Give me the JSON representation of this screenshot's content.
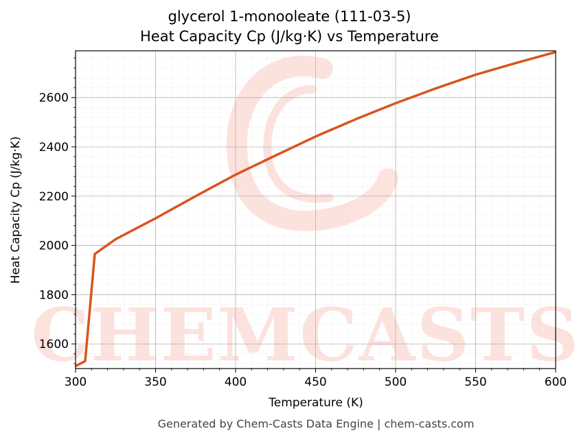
{
  "title_line1": "glycerol 1-monooleate (111-03-5)",
  "title_line2": "Heat Capacity Cp (J/kg·K) vs Temperature",
  "watermark": "CHEMCASTS",
  "footer": "Generated by Chem-Casts Data Engine | chem-casts.com",
  "chart_data": {
    "type": "line",
    "xlabel": "Temperature (K)",
    "ylabel": "Heat Capacity Cp (J/kg·K)",
    "xlim": [
      300,
      600
    ],
    "ylim": [
      1500,
      2790
    ],
    "x_ticks": [
      300,
      350,
      400,
      450,
      500,
      550,
      600
    ],
    "y_ticks": [
      1600,
      1800,
      2000,
      2200,
      2400,
      2600
    ],
    "grid": true,
    "line_color": "#d9541e",
    "series": [
      {
        "x": [
          300,
          306,
          312,
          325,
          350,
          375,
          400,
          425,
          450,
          475,
          500,
          525,
          550,
          575,
          600
        ],
        "values": [
          1510,
          1530,
          1965,
          2025,
          2110,
          2200,
          2287,
          2365,
          2442,
          2512,
          2577,
          2637,
          2693,
          2740,
          2785
        ]
      }
    ]
  }
}
